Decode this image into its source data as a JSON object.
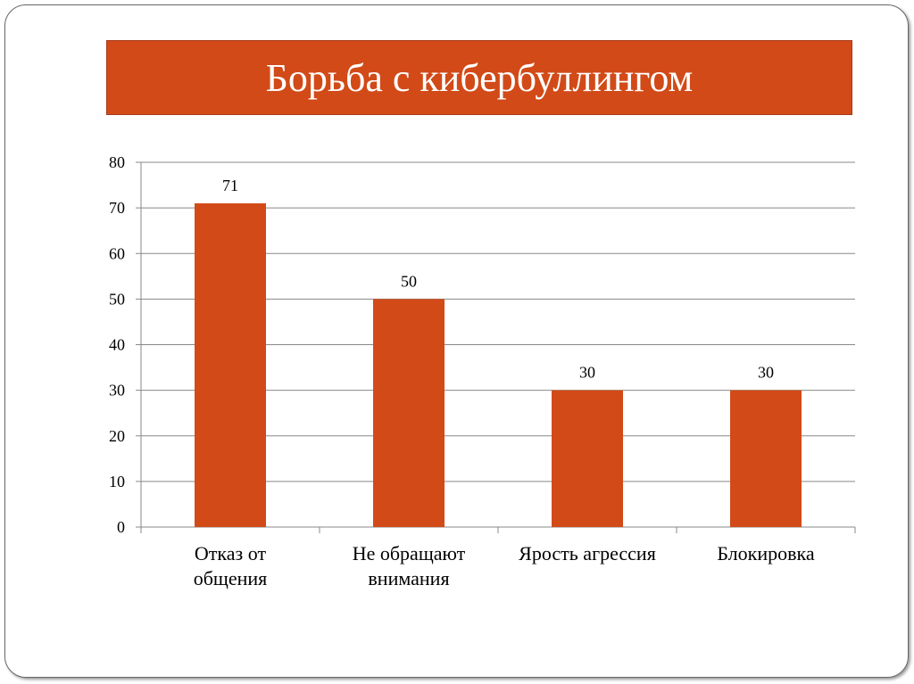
{
  "title": "Борьба с кибербуллингом",
  "chart_data": {
    "type": "bar",
    "title": "Борьба с кибербуллингом",
    "categories": [
      [
        "Отказ от",
        "общения"
      ],
      [
        "Не обращают",
        "внимания"
      ],
      [
        "Ярость агрессия"
      ],
      [
        "Блокировка"
      ]
    ],
    "values": [
      71,
      50,
      30,
      30
    ],
    "ylim": [
      0,
      80
    ],
    "yticks": [
      0,
      10,
      20,
      30,
      40,
      50,
      60,
      70,
      80
    ],
    "grid": true,
    "bar_color": "#d24a18",
    "xlabel": "",
    "ylabel": ""
  }
}
